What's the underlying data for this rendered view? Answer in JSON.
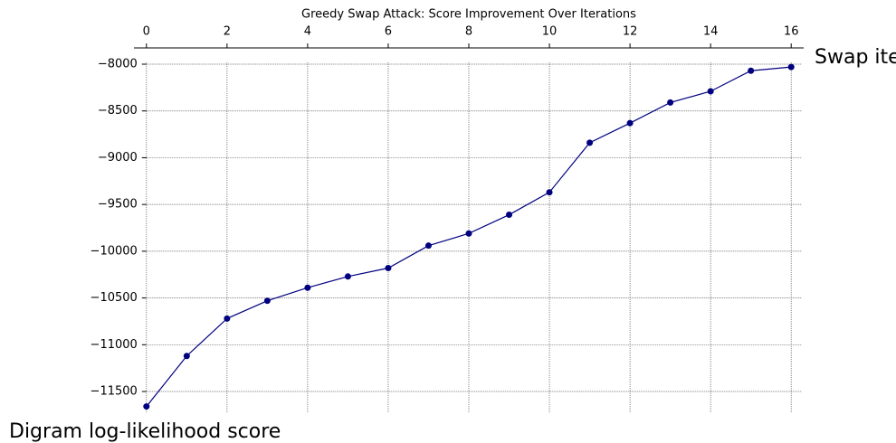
{
  "chart_data": {
    "type": "line",
    "title": "Greedy Swap Attack: Score Improvement Over Iterations",
    "x_label": "Swap iterations",
    "y_label": "Digram log-likelihood score",
    "x": [
      0,
      1,
      2,
      3,
      4,
      5,
      6,
      7,
      8,
      9,
      10,
      11,
      12,
      13,
      14,
      15,
      16
    ],
    "series": [
      {
        "color": "#00007f",
        "values": [
          -11660,
          -11120,
          -10720,
          -10530,
          -10390,
          -10270,
          -10180,
          -9940,
          -9810,
          -9610,
          -9370,
          -8840,
          -8630,
          -8410,
          -8290,
          -8070,
          -8030
        ]
      }
    ],
    "xlim": [
      -0.31,
      16.31
    ],
    "ylim": [
      -11722,
      -7826
    ],
    "xticks": [
      0,
      2,
      4,
      6,
      8,
      10,
      12,
      14,
      16
    ],
    "yticks": [
      {
        "value": -8000,
        "label": "−8000"
      },
      {
        "value": -8500,
        "label": "−8500"
      },
      {
        "value": -9000,
        "label": "−9000"
      },
      {
        "value": -9500,
        "label": "−9500"
      },
      {
        "value": -10000,
        "label": "−10000"
      },
      {
        "value": -10500,
        "label": "−10500"
      },
      {
        "value": -11000,
        "label": "−11000"
      },
      {
        "value": -11500,
        "label": "−11500"
      }
    ],
    "grid": true
  }
}
